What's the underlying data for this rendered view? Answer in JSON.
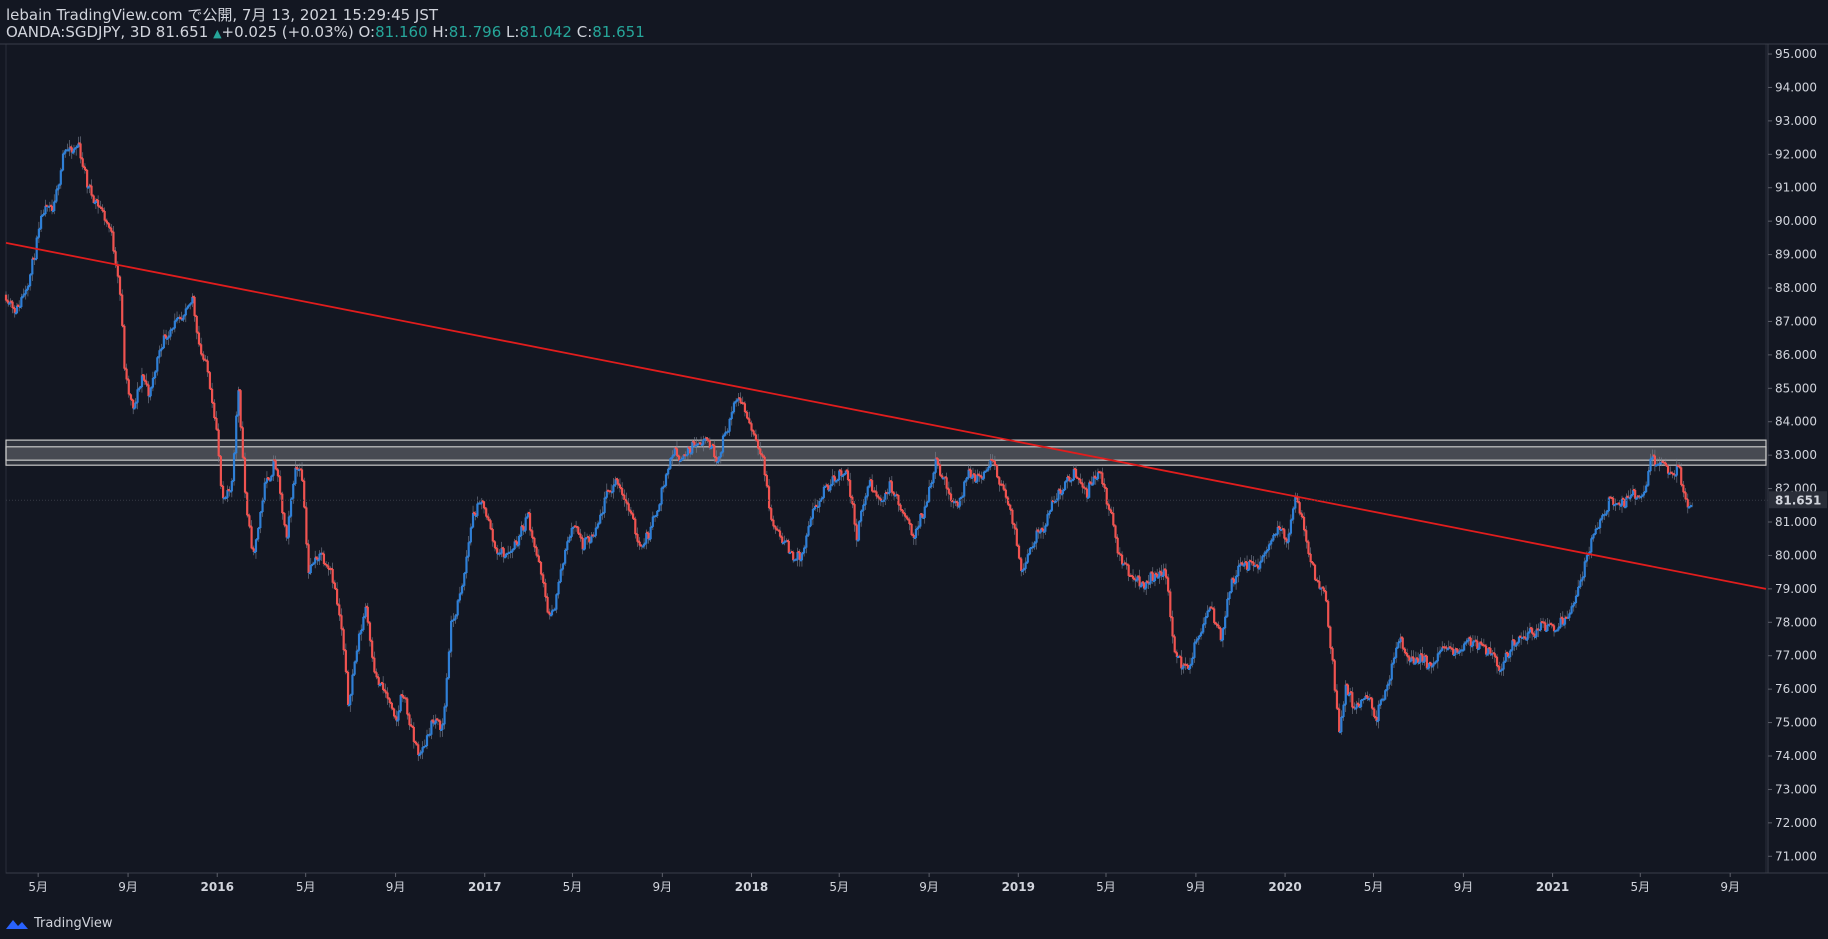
{
  "header": {
    "line1": "lebain TradingView.com で公開, 7月 13, 2021 15:29:45 JST",
    "symbol": "OANDA:SGDJPY, 3D",
    "last": "81.651",
    "change": "+0.025 (+0.03%)",
    "o_label": "O:",
    "o": "81.160",
    "h_label": "H:",
    "h": "81.796",
    "l_label": "L:",
    "l": "81.042",
    "c_label": "C:",
    "c": "81.651"
  },
  "footer": {
    "brand": "TradingView"
  },
  "colors": {
    "bg": "#131722",
    "up": "#2f7fd6",
    "down": "#ef5350",
    "trend": "#e11d1d",
    "zone": "#c8c8c8"
  },
  "chart_data": {
    "type": "candlestick",
    "y_ticks": [
      "95.000",
      "94.000",
      "93.000",
      "92.000",
      "91.000",
      "90.000",
      "89.000",
      "88.000",
      "87.000",
      "86.000",
      "85.000",
      "84.000",
      "83.000",
      "82.000",
      "81.000",
      "80.000",
      "79.000",
      "78.000",
      "77.000",
      "76.000",
      "75.000",
      "74.000",
      "73.000",
      "72.000",
      "71.000"
    ],
    "ylim": [
      70.5,
      95.3
    ],
    "x_ticks": [
      {
        "label": "5月",
        "date": "2015-05-01",
        "bold": false
      },
      {
        "label": "9月",
        "date": "2015-09-01",
        "bold": false
      },
      {
        "label": "2016",
        "date": "2016-01-01",
        "bold": true
      },
      {
        "label": "5月",
        "date": "2016-05-01",
        "bold": false
      },
      {
        "label": "9月",
        "date": "2016-09-01",
        "bold": false
      },
      {
        "label": "2017",
        "date": "2017-01-01",
        "bold": true
      },
      {
        "label": "5月",
        "date": "2017-05-01",
        "bold": false
      },
      {
        "label": "9月",
        "date": "2017-09-01",
        "bold": false
      },
      {
        "label": "2018",
        "date": "2018-01-01",
        "bold": true
      },
      {
        "label": "5月",
        "date": "2018-05-01",
        "bold": false
      },
      {
        "label": "9月",
        "date": "2018-09-01",
        "bold": false
      },
      {
        "label": "2019",
        "date": "2019-01-01",
        "bold": true
      },
      {
        "label": "5月",
        "date": "2019-05-01",
        "bold": false
      },
      {
        "label": "9月",
        "date": "2019-09-01",
        "bold": false
      },
      {
        "label": "2020",
        "date": "2020-01-01",
        "bold": true
      },
      {
        "label": "5月",
        "date": "2020-05-01",
        "bold": false
      },
      {
        "label": "9月",
        "date": "2020-09-01",
        "bold": false
      },
      {
        "label": "2021",
        "date": "2021-01-01",
        "bold": true
      },
      {
        "label": "5月",
        "date": "2021-05-01",
        "bold": false
      },
      {
        "label": "9月",
        "date": "2021-09-01",
        "bold": false
      }
    ],
    "current_price": "81.651",
    "close_path": [
      {
        "date": "2015-03-18",
        "price": 87.8
      },
      {
        "date": "2015-04-01",
        "price": 87.3
      },
      {
        "date": "2015-04-20",
        "price": 88.4
      },
      {
        "date": "2015-05-08",
        "price": 90.3
      },
      {
        "date": "2015-05-22",
        "price": 90.3
      },
      {
        "date": "2015-06-05",
        "price": 92.2
      },
      {
        "date": "2015-06-15",
        "price": 92.0
      },
      {
        "date": "2015-06-25",
        "price": 92.3
      },
      {
        "date": "2015-07-08",
        "price": 91.0
      },
      {
        "date": "2015-07-25",
        "price": 90.4
      },
      {
        "date": "2015-08-08",
        "price": 89.7
      },
      {
        "date": "2015-08-20",
        "price": 88.2
      },
      {
        "date": "2015-08-28",
        "price": 85.3
      },
      {
        "date": "2015-09-08",
        "price": 84.3
      },
      {
        "date": "2015-09-20",
        "price": 85.4
      },
      {
        "date": "2015-10-01",
        "price": 84.8
      },
      {
        "date": "2015-10-15",
        "price": 86.3
      },
      {
        "date": "2015-11-01",
        "price": 86.9
      },
      {
        "date": "2015-11-15",
        "price": 87.0
      },
      {
        "date": "2015-11-28",
        "price": 87.7
      },
      {
        "date": "2015-12-08",
        "price": 86.2
      },
      {
        "date": "2015-12-20",
        "price": 85.4
      },
      {
        "date": "2015-12-30",
        "price": 84.0
      },
      {
        "date": "2016-01-08",
        "price": 81.5
      },
      {
        "date": "2016-01-20",
        "price": 82.0
      },
      {
        "date": "2016-01-30",
        "price": 85.0
      },
      {
        "date": "2016-02-10",
        "price": 81.2
      },
      {
        "date": "2016-02-20",
        "price": 80.0
      },
      {
        "date": "2016-03-05",
        "price": 82.0
      },
      {
        "date": "2016-03-20",
        "price": 82.8
      },
      {
        "date": "2016-04-05",
        "price": 80.4
      },
      {
        "date": "2016-04-15",
        "price": 82.5
      },
      {
        "date": "2016-04-25",
        "price": 82.7
      },
      {
        "date": "2016-05-05",
        "price": 79.5
      },
      {
        "date": "2016-05-20",
        "price": 80.1
      },
      {
        "date": "2016-06-05",
        "price": 79.6
      },
      {
        "date": "2016-06-20",
        "price": 77.6
      },
      {
        "date": "2016-06-28",
        "price": 75.6
      },
      {
        "date": "2016-07-10",
        "price": 77.2
      },
      {
        "date": "2016-07-22",
        "price": 78.5
      },
      {
        "date": "2016-08-05",
        "price": 76.3
      },
      {
        "date": "2016-08-20",
        "price": 75.8
      },
      {
        "date": "2016-09-01",
        "price": 74.9
      },
      {
        "date": "2016-09-10",
        "price": 76.0
      },
      {
        "date": "2016-09-25",
        "price": 74.5
      },
      {
        "date": "2016-10-05",
        "price": 74.0
      },
      {
        "date": "2016-10-20",
        "price": 75.0
      },
      {
        "date": "2016-11-05",
        "price": 74.9
      },
      {
        "date": "2016-11-15",
        "price": 77.8
      },
      {
        "date": "2016-12-01",
        "price": 79.0
      },
      {
        "date": "2016-12-15",
        "price": 81.2
      },
      {
        "date": "2016-12-30",
        "price": 81.6
      },
      {
        "date": "2017-01-15",
        "price": 80.2
      },
      {
        "date": "2017-02-01",
        "price": 80.0
      },
      {
        "date": "2017-02-15",
        "price": 80.5
      },
      {
        "date": "2017-03-01",
        "price": 81.2
      },
      {
        "date": "2017-03-15",
        "price": 79.8
      },
      {
        "date": "2017-04-01",
        "price": 78.0
      },
      {
        "date": "2017-04-15",
        "price": 79.5
      },
      {
        "date": "2017-05-01",
        "price": 81.0
      },
      {
        "date": "2017-05-15",
        "price": 80.3
      },
      {
        "date": "2017-06-01",
        "price": 80.6
      },
      {
        "date": "2017-06-15",
        "price": 81.7
      },
      {
        "date": "2017-07-01",
        "price": 82.3
      },
      {
        "date": "2017-07-15",
        "price": 81.5
      },
      {
        "date": "2017-08-01",
        "price": 80.3
      },
      {
        "date": "2017-08-15",
        "price": 80.7
      },
      {
        "date": "2017-09-01",
        "price": 82.0
      },
      {
        "date": "2017-09-15",
        "price": 83.1
      },
      {
        "date": "2017-10-01",
        "price": 82.9
      },
      {
        "date": "2017-10-15",
        "price": 83.4
      },
      {
        "date": "2017-11-01",
        "price": 83.5
      },
      {
        "date": "2017-11-15",
        "price": 82.9
      },
      {
        "date": "2017-12-01",
        "price": 84.0
      },
      {
        "date": "2017-12-15",
        "price": 84.8
      },
      {
        "date": "2018-01-01",
        "price": 83.8
      },
      {
        "date": "2018-01-15",
        "price": 83.1
      },
      {
        "date": "2018-01-28",
        "price": 81.0
      },
      {
        "date": "2018-02-10",
        "price": 80.6
      },
      {
        "date": "2018-02-25",
        "price": 80.0
      },
      {
        "date": "2018-03-10",
        "price": 79.9
      },
      {
        "date": "2018-03-25",
        "price": 81.2
      },
      {
        "date": "2018-04-10",
        "price": 81.9
      },
      {
        "date": "2018-04-25",
        "price": 82.3
      },
      {
        "date": "2018-05-10",
        "price": 82.6
      },
      {
        "date": "2018-05-25",
        "price": 80.6
      },
      {
        "date": "2018-06-10",
        "price": 82.2
      },
      {
        "date": "2018-06-25",
        "price": 81.6
      },
      {
        "date": "2018-07-10",
        "price": 82.1
      },
      {
        "date": "2018-07-25",
        "price": 81.3
      },
      {
        "date": "2018-08-10",
        "price": 80.6
      },
      {
        "date": "2018-08-25",
        "price": 81.3
      },
      {
        "date": "2018-09-10",
        "price": 82.9
      },
      {
        "date": "2018-09-25",
        "price": 82.0
      },
      {
        "date": "2018-10-10",
        "price": 81.5
      },
      {
        "date": "2018-10-25",
        "price": 82.4
      },
      {
        "date": "2018-11-10",
        "price": 82.3
      },
      {
        "date": "2018-11-25",
        "price": 82.8
      },
      {
        "date": "2018-12-10",
        "price": 82.1
      },
      {
        "date": "2018-12-25",
        "price": 80.9
      },
      {
        "date": "2019-01-05",
        "price": 79.6
      },
      {
        "date": "2019-01-20",
        "price": 80.4
      },
      {
        "date": "2019-02-05",
        "price": 80.9
      },
      {
        "date": "2019-02-20",
        "price": 81.7
      },
      {
        "date": "2019-03-05",
        "price": 82.1
      },
      {
        "date": "2019-03-20",
        "price": 82.5
      },
      {
        "date": "2019-04-05",
        "price": 81.9
      },
      {
        "date": "2019-04-20",
        "price": 82.6
      },
      {
        "date": "2019-05-05",
        "price": 81.4
      },
      {
        "date": "2019-05-20",
        "price": 79.9
      },
      {
        "date": "2019-06-05",
        "price": 79.4
      },
      {
        "date": "2019-06-20",
        "price": 79.1
      },
      {
        "date": "2019-07-05",
        "price": 79.4
      },
      {
        "date": "2019-07-20",
        "price": 79.6
      },
      {
        "date": "2019-08-05",
        "price": 76.9
      },
      {
        "date": "2019-08-20",
        "price": 76.6
      },
      {
        "date": "2019-09-05",
        "price": 77.6
      },
      {
        "date": "2019-09-20",
        "price": 78.4
      },
      {
        "date": "2019-10-05",
        "price": 77.6
      },
      {
        "date": "2019-10-20",
        "price": 79.2
      },
      {
        "date": "2019-11-05",
        "price": 79.8
      },
      {
        "date": "2019-11-20",
        "price": 79.6
      },
      {
        "date": "2019-12-05",
        "price": 80.1
      },
      {
        "date": "2019-12-20",
        "price": 80.8
      },
      {
        "date": "2020-01-05",
        "price": 80.5
      },
      {
        "date": "2020-01-15",
        "price": 81.7
      },
      {
        "date": "2020-01-28",
        "price": 80.7
      },
      {
        "date": "2020-02-10",
        "price": 79.4
      },
      {
        "date": "2020-02-25",
        "price": 78.8
      },
      {
        "date": "2020-03-05",
        "price": 77.0
      },
      {
        "date": "2020-03-15",
        "price": 74.7
      },
      {
        "date": "2020-03-25",
        "price": 76.1
      },
      {
        "date": "2020-04-05",
        "price": 75.3
      },
      {
        "date": "2020-04-20",
        "price": 75.8
      },
      {
        "date": "2020-05-05",
        "price": 75.2
      },
      {
        "date": "2020-05-20",
        "price": 76.0
      },
      {
        "date": "2020-06-05",
        "price": 77.6
      },
      {
        "date": "2020-06-20",
        "price": 76.8
      },
      {
        "date": "2020-07-05",
        "price": 77.0
      },
      {
        "date": "2020-07-20",
        "price": 76.6
      },
      {
        "date": "2020-08-05",
        "price": 77.3
      },
      {
        "date": "2020-08-20",
        "price": 77.0
      },
      {
        "date": "2020-09-05",
        "price": 77.5
      },
      {
        "date": "2020-09-20",
        "price": 77.3
      },
      {
        "date": "2020-10-05",
        "price": 77.1
      },
      {
        "date": "2020-10-20",
        "price": 76.6
      },
      {
        "date": "2020-11-05",
        "price": 77.3
      },
      {
        "date": "2020-11-20",
        "price": 77.6
      },
      {
        "date": "2020-12-05",
        "price": 77.7
      },
      {
        "date": "2020-12-20",
        "price": 77.9
      },
      {
        "date": "2021-01-05",
        "price": 77.9
      },
      {
        "date": "2021-01-20",
        "price": 78.2
      },
      {
        "date": "2021-02-05",
        "price": 79.0
      },
      {
        "date": "2021-02-20",
        "price": 80.2
      },
      {
        "date": "2021-03-05",
        "price": 81.0
      },
      {
        "date": "2021-03-20",
        "price": 81.6
      },
      {
        "date": "2021-04-05",
        "price": 81.5
      },
      {
        "date": "2021-04-20",
        "price": 81.8
      },
      {
        "date": "2021-05-05",
        "price": 81.7
      },
      {
        "date": "2021-05-15",
        "price": 82.8
      },
      {
        "date": "2021-05-30",
        "price": 82.9
      },
      {
        "date": "2021-06-10",
        "price": 82.3
      },
      {
        "date": "2021-06-22",
        "price": 82.6
      },
      {
        "date": "2021-07-01",
        "price": 81.5
      },
      {
        "date": "2021-07-13",
        "price": 81.651
      }
    ],
    "trendline": {
      "start": {
        "date": "2015-03-18",
        "price": 89.35
      },
      "end": {
        "date": "2021-10-20",
        "price": 79.0
      }
    },
    "zones": [
      {
        "low": 82.7,
        "high": 83.25
      },
      {
        "low": 82.85,
        "high": 83.45
      }
    ]
  }
}
